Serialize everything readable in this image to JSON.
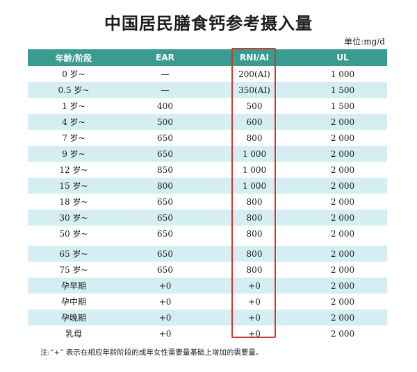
{
  "title": "中国居民膳食钙参考摄入量",
  "unit": "单位:mg/d",
  "table": {
    "headers": [
      "年龄/阶段",
      "EAR",
      "RNI/AI",
      "UL"
    ],
    "rows": [
      [
        "0 岁~",
        "—",
        "200(AI)",
        "1 000"
      ],
      [
        "0.5 岁~",
        "—",
        "350(AI)",
        "1 500"
      ],
      [
        "1 岁~",
        "400",
        "500",
        "1 500"
      ],
      [
        "4 岁~",
        "500",
        "600",
        "2 000"
      ],
      [
        "7 岁~",
        "650",
        "800",
        "2 000"
      ],
      [
        "9 岁~",
        "650",
        "1 000",
        "2 000"
      ],
      [
        "12 岁~",
        "850",
        "1 000",
        "2 000"
      ],
      [
        "15 岁~",
        "800",
        "1 000",
        "2 000"
      ],
      [
        "18 岁~",
        "650",
        "800",
        "2 000"
      ],
      [
        "30 岁~",
        "650",
        "800",
        "2 000"
      ],
      [
        "50 岁~",
        "650",
        "800",
        "2 000"
      ],
      [
        "65 岁~",
        "650",
        "800",
        "2 000"
      ],
      [
        "75 岁~",
        "650",
        "800",
        "2 000"
      ],
      [
        "孕早期",
        "+0",
        "+0",
        "2 000"
      ],
      [
        "孕中期",
        "+0",
        "+0",
        "2 000"
      ],
      [
        "孕晚期",
        "+0",
        "+0",
        "2 000"
      ],
      [
        "乳母",
        "+0",
        "+0",
        "2 000"
      ]
    ]
  },
  "note": "注:“+” 表示在相应年龄阶段的成年女性需要量基础上增加的需要量。",
  "colors": {
    "header_bg": "#3a9b90",
    "stripe_bg": "#d4eef3",
    "highlight_border": "#d23a2c"
  }
}
